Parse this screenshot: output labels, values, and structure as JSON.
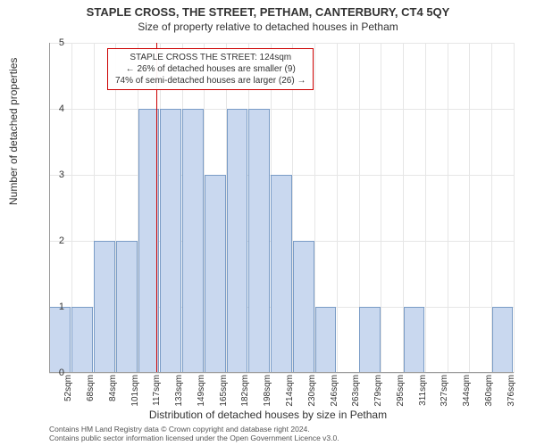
{
  "title": "STAPLE CROSS, THE STREET, PETHAM, CANTERBURY, CT4 5QY",
  "subtitle": "Size of property relative to detached houses in Petham",
  "ylabel": "Number of detached properties",
  "xlabel": "Distribution of detached houses by size in Petham",
  "footer_line1": "Contains HM Land Registry data © Crown copyright and database right 2024.",
  "footer_line2": "Contains public sector information licensed under the Open Government Licence v3.0.",
  "annotation": {
    "line1": "STAPLE CROSS THE STREET: 124sqm",
    "line2": "← 26% of detached houses are smaller (9)",
    "line3": "74% of semi-detached houses are larger (26) →",
    "border_color": "#cc0000"
  },
  "chart": {
    "type": "bar",
    "background_color": "#ffffff",
    "grid_color": "#e6e6e6",
    "bar_fill": "#c9d8ef",
    "bar_border": "#7a9cc6",
    "marker_color": "#cc0000",
    "axis_color": "#999999",
    "ylim": [
      0,
      5
    ],
    "yticks": [
      0,
      1,
      2,
      3,
      4,
      5
    ],
    "bar_width_ratio": 0.96,
    "marker_x_value": 124,
    "x_bin_start": 44,
    "x_bin_width": 16.5,
    "categories": [
      "52sqm",
      "68sqm",
      "84sqm",
      "101sqm",
      "117sqm",
      "133sqm",
      "149sqm",
      "165sqm",
      "182sqm",
      "198sqm",
      "214sqm",
      "230sqm",
      "246sqm",
      "263sqm",
      "279sqm",
      "295sqm",
      "311sqm",
      "327sqm",
      "344sqm",
      "360sqm",
      "376sqm"
    ],
    "values": [
      1,
      1,
      2,
      2,
      4,
      4,
      4,
      3,
      4,
      4,
      3,
      2,
      1,
      0,
      1,
      0,
      1,
      0,
      0,
      0,
      1
    ]
  }
}
